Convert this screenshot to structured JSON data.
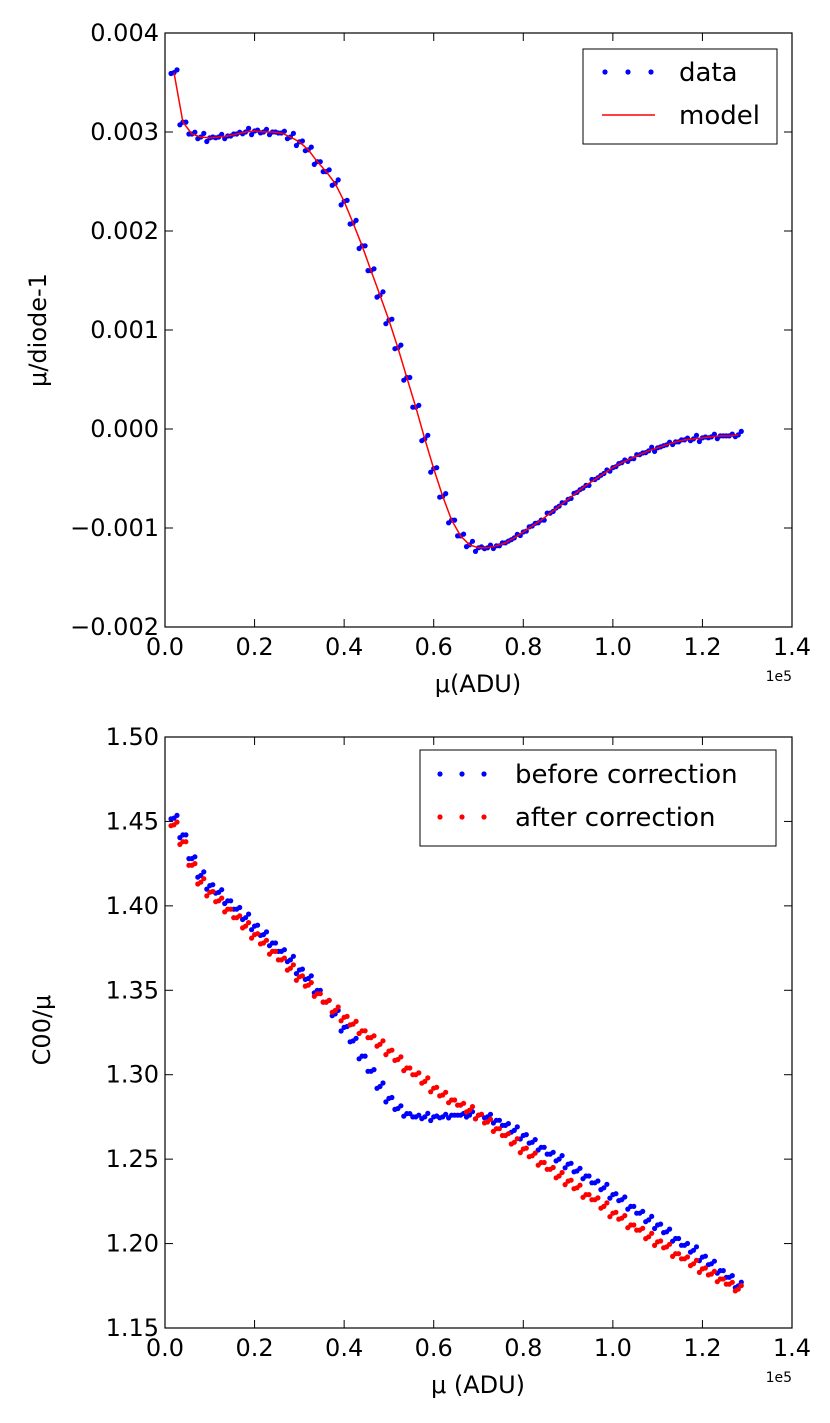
{
  "colors": {
    "data": "#0000ff",
    "model": "#ff0000",
    "before": "#0000ff",
    "after": "#ff0000"
  },
  "chart_data": [
    {
      "type": "scatter",
      "xlabel": "μ(ADU)",
      "ylabel": "μ/diode-1",
      "x_offset_label": "1e5",
      "xlim": [
        0.0,
        1.4
      ],
      "ylim": [
        -0.002,
        0.004
      ],
      "xticks": [
        "0.0",
        "0.2",
        "0.4",
        "0.6",
        "0.8",
        "1.0",
        "1.2",
        "1.4"
      ],
      "yticks": [
        "−0.002",
        "−0.001",
        "0.000",
        "0.001",
        "0.002",
        "0.003",
        "0.004"
      ],
      "legend": {
        "placement": "top-right",
        "entries": [
          "data",
          "model"
        ]
      },
      "series": [
        {
          "name": "data",
          "style": "points",
          "x": [
            0.02,
            0.04,
            0.06,
            0.08,
            0.1,
            0.12,
            0.14,
            0.16,
            0.18,
            0.2,
            0.22,
            0.24,
            0.26,
            0.28,
            0.3,
            0.32,
            0.34,
            0.36,
            0.38,
            0.4,
            0.42,
            0.44,
            0.46,
            0.48,
            0.5,
            0.52,
            0.54,
            0.56,
            0.58,
            0.6,
            0.62,
            0.64,
            0.66,
            0.68,
            0.7,
            0.72,
            0.74,
            0.76,
            0.78,
            0.8,
            0.82,
            0.84,
            0.86,
            0.88,
            0.9,
            0.92,
            0.94,
            0.96,
            0.98,
            1.0,
            1.02,
            1.04,
            1.06,
            1.08,
            1.1,
            1.12,
            1.14,
            1.16,
            1.18,
            1.2,
            1.22,
            1.24,
            1.26,
            1.28
          ],
          "y": [
            0.0036,
            0.0031,
            0.00298,
            0.00295,
            0.00294,
            0.00295,
            0.00296,
            0.00298,
            0.003,
            0.00301,
            0.003,
            0.003,
            0.00299,
            0.00295,
            0.0029,
            0.00282,
            0.0027,
            0.0026,
            0.00248,
            0.0023,
            0.00208,
            0.00185,
            0.0016,
            0.00135,
            0.0011,
            0.00082,
            0.00052,
            0.00022,
            -0.0001,
            -0.0004,
            -0.00068,
            -0.00092,
            -0.00108,
            -0.00117,
            -0.0012,
            -0.0012,
            -0.00118,
            -0.00115,
            -0.0011,
            -0.00104,
            -0.00098,
            -0.00092,
            -0.00085,
            -0.00078,
            -0.00071,
            -0.00064,
            -0.00057,
            -0.00051,
            -0.00045,
            -0.00039,
            -0.00034,
            -0.0003,
            -0.00026,
            -0.00022,
            -0.00019,
            -0.00016,
            -0.00013,
            -0.00011,
            -0.0001,
            -9e-05,
            -8e-05,
            -7e-05,
            -7e-05,
            -6e-05
          ]
        },
        {
          "name": "model",
          "style": "line",
          "x": [
            0.02,
            0.04,
            0.06,
            0.08,
            0.1,
            0.12,
            0.14,
            0.16,
            0.18,
            0.2,
            0.22,
            0.24,
            0.26,
            0.28,
            0.3,
            0.32,
            0.34,
            0.36,
            0.38,
            0.4,
            0.42,
            0.44,
            0.46,
            0.48,
            0.5,
            0.52,
            0.54,
            0.56,
            0.58,
            0.6,
            0.62,
            0.64,
            0.66,
            0.68,
            0.7,
            0.72,
            0.74,
            0.76,
            0.78,
            0.8,
            0.82,
            0.84,
            0.86,
            0.88,
            0.9,
            0.92,
            0.94,
            0.96,
            0.98,
            1.0,
            1.02,
            1.04,
            1.06,
            1.08,
            1.1,
            1.12,
            1.14,
            1.16,
            1.18,
            1.2,
            1.22,
            1.24,
            1.26,
            1.28
          ],
          "y": [
            0.0036,
            0.0031,
            0.00298,
            0.00295,
            0.00294,
            0.00295,
            0.00296,
            0.00298,
            0.003,
            0.00301,
            0.003,
            0.003,
            0.00299,
            0.00295,
            0.0029,
            0.00282,
            0.0027,
            0.0026,
            0.00248,
            0.0023,
            0.00208,
            0.00185,
            0.0016,
            0.00135,
            0.0011,
            0.00082,
            0.00052,
            0.00022,
            -0.0001,
            -0.0004,
            -0.00068,
            -0.00092,
            -0.00108,
            -0.00117,
            -0.0012,
            -0.0012,
            -0.00118,
            -0.00115,
            -0.0011,
            -0.00104,
            -0.00098,
            -0.00092,
            -0.00085,
            -0.00078,
            -0.00071,
            -0.00064,
            -0.00057,
            -0.00051,
            -0.00045,
            -0.00039,
            -0.00034,
            -0.0003,
            -0.00026,
            -0.00022,
            -0.00019,
            -0.00016,
            -0.00013,
            -0.00011,
            -0.0001,
            -9e-05,
            -8e-05,
            -7e-05,
            -7e-05,
            -6e-05
          ]
        }
      ]
    },
    {
      "type": "scatter",
      "xlabel": "μ (ADU)",
      "ylabel": "C00/μ",
      "x_offset_label": "1e5",
      "xlim": [
        0.0,
        1.4
      ],
      "ylim": [
        1.15,
        1.5
      ],
      "xticks": [
        "0.0",
        "0.2",
        "0.4",
        "0.6",
        "0.8",
        "1.0",
        "1.2",
        "1.4"
      ],
      "yticks": [
        "1.15",
        "1.20",
        "1.25",
        "1.30",
        "1.35",
        "1.40",
        "1.45",
        "1.50"
      ],
      "legend": {
        "placement": "top-right",
        "entries": [
          "before correction",
          "after correction"
        ]
      },
      "series": [
        {
          "name": "before correction",
          "style": "points",
          "x": [
            0.02,
            0.04,
            0.06,
            0.08,
            0.1,
            0.12,
            0.14,
            0.16,
            0.18,
            0.2,
            0.22,
            0.24,
            0.26,
            0.28,
            0.3,
            0.32,
            0.34,
            0.36,
            0.38,
            0.4,
            0.42,
            0.44,
            0.46,
            0.48,
            0.5,
            0.52,
            0.54,
            0.56,
            0.58,
            0.6,
            0.62,
            0.64,
            0.66,
            0.68,
            0.7,
            0.72,
            0.74,
            0.76,
            0.78,
            0.8,
            0.82,
            0.84,
            0.86,
            0.88,
            0.9,
            0.92,
            0.94,
            0.96,
            0.98,
            1.0,
            1.02,
            1.04,
            1.06,
            1.08,
            1.1,
            1.12,
            1.14,
            1.16,
            1.18,
            1.2,
            1.22,
            1.24,
            1.26,
            1.28
          ],
          "y": [
            1.452,
            1.442,
            1.428,
            1.418,
            1.412,
            1.408,
            1.403,
            1.398,
            1.393,
            1.388,
            1.383,
            1.378,
            1.373,
            1.368,
            1.362,
            1.357,
            1.35,
            1.343,
            1.336,
            1.328,
            1.32,
            1.311,
            1.302,
            1.293,
            1.286,
            1.28,
            1.277,
            1.275,
            1.275,
            1.275,
            1.275,
            1.276,
            1.276,
            1.276,
            1.276,
            1.275,
            1.273,
            1.27,
            1.267,
            1.264,
            1.26,
            1.257,
            1.253,
            1.25,
            1.247,
            1.243,
            1.24,
            1.236,
            1.233,
            1.229,
            1.226,
            1.222,
            1.218,
            1.214,
            1.211,
            1.207,
            1.203,
            1.199,
            1.196,
            1.192,
            1.188,
            1.184,
            1.18,
            1.175
          ]
        },
        {
          "name": "after correction",
          "style": "points",
          "x": [
            0.02,
            0.04,
            0.06,
            0.08,
            0.1,
            0.12,
            0.14,
            0.16,
            0.18,
            0.2,
            0.22,
            0.24,
            0.26,
            0.28,
            0.3,
            0.32,
            0.34,
            0.36,
            0.38,
            0.4,
            0.42,
            0.44,
            0.46,
            0.48,
            0.5,
            0.52,
            0.54,
            0.56,
            0.58,
            0.6,
            0.62,
            0.64,
            0.66,
            0.68,
            0.7,
            0.72,
            0.74,
            0.76,
            0.78,
            0.8,
            0.82,
            0.84,
            0.86,
            0.88,
            0.9,
            0.92,
            0.94,
            0.96,
            0.98,
            1.0,
            1.02,
            1.04,
            1.06,
            1.08,
            1.1,
            1.12,
            1.14,
            1.16,
            1.18,
            1.2,
            1.22,
            1.24,
            1.26,
            1.28
          ],
          "y": [
            1.448,
            1.438,
            1.424,
            1.414,
            1.408,
            1.403,
            1.398,
            1.393,
            1.388,
            1.383,
            1.378,
            1.373,
            1.368,
            1.363,
            1.358,
            1.353,
            1.348,
            1.343,
            1.338,
            1.334,
            1.33,
            1.326,
            1.322,
            1.318,
            1.314,
            1.309,
            1.304,
            1.3,
            1.296,
            1.292,
            1.288,
            1.285,
            1.282,
            1.279,
            1.276,
            1.272,
            1.268,
            1.264,
            1.26,
            1.256,
            1.252,
            1.248,
            1.244,
            1.24,
            1.237,
            1.233,
            1.229,
            1.226,
            1.222,
            1.218,
            1.215,
            1.211,
            1.208,
            1.204,
            1.201,
            1.198,
            1.194,
            1.191,
            1.188,
            1.185,
            1.182,
            1.179,
            1.176,
            1.173
          ]
        }
      ]
    }
  ]
}
